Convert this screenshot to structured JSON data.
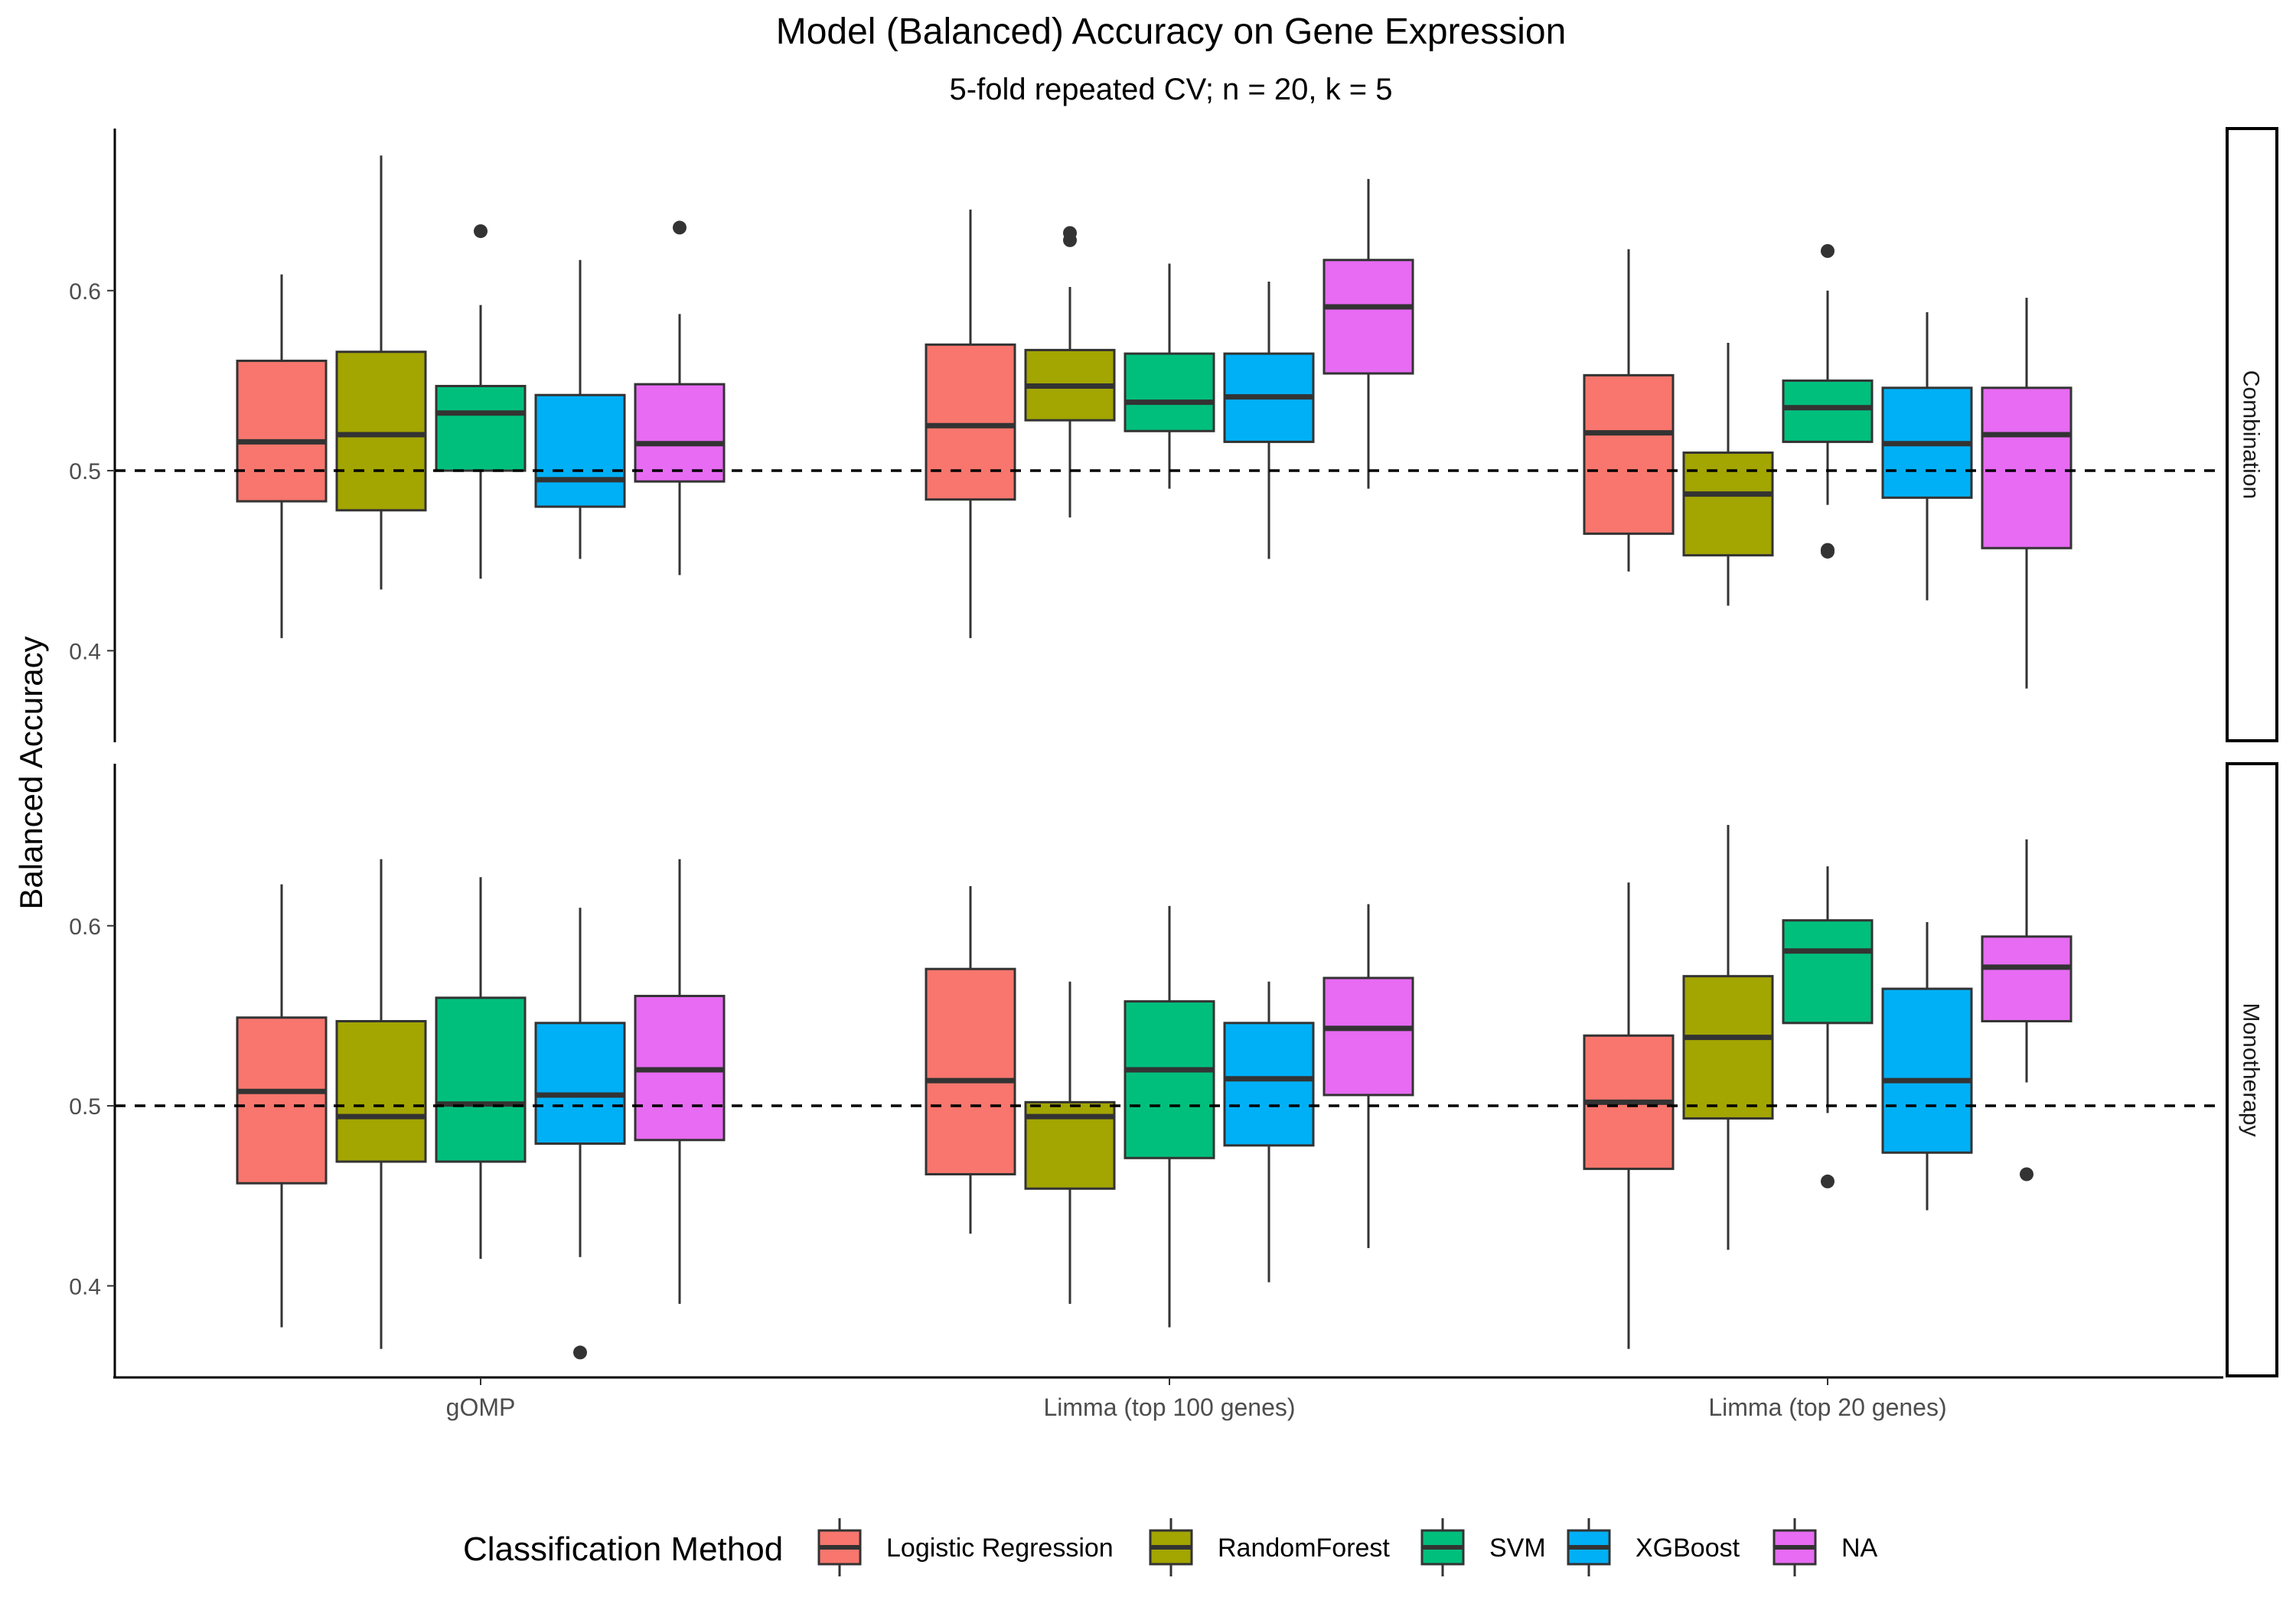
{
  "chart_data": {
    "type": "boxplot",
    "title": "Model (Balanced) Accuracy on Gene Expression",
    "subtitle": "5-fold repeated CV; n = 20, k = 5",
    "ylabel": "Balanced Accuracy",
    "xlabel": "",
    "ylim": [
      0.35,
      0.69
    ],
    "yticks": [
      0.4,
      0.5,
      0.6
    ],
    "ytick_labels": [
      "0.4",
      "0.5",
      "0.6"
    ],
    "reference_line": 0.5,
    "categories": [
      "gOMP",
      "Limma (top 100 genes)",
      "Limma (top 20 genes)"
    ],
    "legend": {
      "title": "Classification Method",
      "position": "bottom",
      "entries": [
        "Logistic Regression",
        "RandomForest",
        "SVM",
        "XGBoost",
        "NA"
      ]
    },
    "colors": {
      "Logistic Regression": "#F8766D",
      "RandomForest": "#A3A500",
      "SVM": "#00BF7D",
      "XGBoost": "#00B0F6",
      "NA": "#E76BF3"
    },
    "panels": [
      {
        "name": "Combination",
        "series": [
          {
            "name": "Logistic Regression",
            "boxes": [
              {
                "min": 0.407,
                "q1": 0.483,
                "median": 0.516,
                "q3": 0.561,
                "max": 0.609,
                "outliers": []
              },
              {
                "min": 0.407,
                "q1": 0.484,
                "median": 0.525,
                "q3": 0.57,
                "max": 0.645,
                "outliers": []
              },
              {
                "min": 0.444,
                "q1": 0.465,
                "median": 0.521,
                "q3": 0.553,
                "max": 0.623,
                "outliers": []
              }
            ]
          },
          {
            "name": "RandomForest",
            "boxes": [
              {
                "min": 0.434,
                "q1": 0.478,
                "median": 0.52,
                "q3": 0.566,
                "max": 0.675,
                "outliers": []
              },
              {
                "min": 0.474,
                "q1": 0.528,
                "median": 0.547,
                "q3": 0.567,
                "max": 0.602,
                "outliers": [
                  0.632,
                  0.628
                ]
              },
              {
                "min": 0.425,
                "q1": 0.453,
                "median": 0.487,
                "q3": 0.51,
                "max": 0.571,
                "outliers": []
              }
            ]
          },
          {
            "name": "SVM",
            "boxes": [
              {
                "min": 0.44,
                "q1": 0.5,
                "median": 0.532,
                "q3": 0.547,
                "max": 0.592,
                "outliers": [
                  0.633
                ]
              },
              {
                "min": 0.49,
                "q1": 0.522,
                "median": 0.538,
                "q3": 0.565,
                "max": 0.615,
                "outliers": []
              },
              {
                "min": 0.481,
                "q1": 0.516,
                "median": 0.535,
                "q3": 0.55,
                "max": 0.6,
                "outliers": [
                  0.622,
                  0.456,
                  0.455
                ]
              }
            ]
          },
          {
            "name": "XGBoost",
            "boxes": [
              {
                "min": 0.451,
                "q1": 0.48,
                "median": 0.495,
                "q3": 0.542,
                "max": 0.617,
                "outliers": []
              },
              {
                "min": 0.451,
                "q1": 0.516,
                "median": 0.541,
                "q3": 0.565,
                "max": 0.605,
                "outliers": []
              },
              {
                "min": 0.428,
                "q1": 0.485,
                "median": 0.515,
                "q3": 0.546,
                "max": 0.588,
                "outliers": []
              }
            ]
          },
          {
            "name": "NA",
            "boxes": [
              {
                "min": 0.442,
                "q1": 0.494,
                "median": 0.515,
                "q3": 0.548,
                "max": 0.587,
                "outliers": [
                  0.635
                ]
              },
              {
                "min": 0.49,
                "q1": 0.554,
                "median": 0.591,
                "q3": 0.617,
                "max": 0.662,
                "outliers": []
              },
              {
                "min": 0.379,
                "q1": 0.457,
                "median": 0.52,
                "q3": 0.546,
                "max": 0.596,
                "outliers": []
              }
            ]
          }
        ]
      },
      {
        "name": "Monotherapy",
        "series": [
          {
            "name": "Logistic Regression",
            "boxes": [
              {
                "min": 0.377,
                "q1": 0.457,
                "median": 0.508,
                "q3": 0.549,
                "max": 0.623,
                "outliers": []
              },
              {
                "min": 0.429,
                "q1": 0.462,
                "median": 0.514,
                "q3": 0.576,
                "max": 0.622,
                "outliers": []
              },
              {
                "min": 0.365,
                "q1": 0.465,
                "median": 0.502,
                "q3": 0.539,
                "max": 0.624,
                "outliers": []
              }
            ]
          },
          {
            "name": "RandomForest",
            "boxes": [
              {
                "min": 0.365,
                "q1": 0.469,
                "median": 0.494,
                "q3": 0.547,
                "max": 0.637,
                "outliers": []
              },
              {
                "min": 0.39,
                "q1": 0.454,
                "median": 0.494,
                "q3": 0.502,
                "max": 0.569,
                "outliers": []
              },
              {
                "min": 0.42,
                "q1": 0.493,
                "median": 0.538,
                "q3": 0.572,
                "max": 0.656,
                "outliers": []
              }
            ]
          },
          {
            "name": "SVM",
            "boxes": [
              {
                "min": 0.415,
                "q1": 0.469,
                "median": 0.501,
                "q3": 0.56,
                "max": 0.627,
                "outliers": []
              },
              {
                "min": 0.377,
                "q1": 0.471,
                "median": 0.52,
                "q3": 0.558,
                "max": 0.611,
                "outliers": []
              },
              {
                "min": 0.496,
                "q1": 0.546,
                "median": 0.586,
                "q3": 0.603,
                "max": 0.633,
                "outliers": [
                  0.458
                ]
              }
            ]
          },
          {
            "name": "XGBoost",
            "boxes": [
              {
                "min": 0.416,
                "q1": 0.479,
                "median": 0.506,
                "q3": 0.546,
                "max": 0.61,
                "outliers": [
                  0.363
                ]
              },
              {
                "min": 0.402,
                "q1": 0.478,
                "median": 0.515,
                "q3": 0.546,
                "max": 0.569,
                "outliers": []
              },
              {
                "min": 0.442,
                "q1": 0.474,
                "median": 0.514,
                "q3": 0.565,
                "max": 0.602,
                "outliers": []
              }
            ]
          },
          {
            "name": "NA",
            "boxes": [
              {
                "min": 0.39,
                "q1": 0.481,
                "median": 0.52,
                "q3": 0.561,
                "max": 0.637,
                "outliers": []
              },
              {
                "min": 0.421,
                "q1": 0.506,
                "median": 0.543,
                "q3": 0.571,
                "max": 0.612,
                "outliers": []
              },
              {
                "min": 0.513,
                "q1": 0.547,
                "median": 0.577,
                "q3": 0.594,
                "max": 0.648,
                "outliers": [
                  0.462
                ]
              }
            ]
          }
        ]
      }
    ]
  }
}
